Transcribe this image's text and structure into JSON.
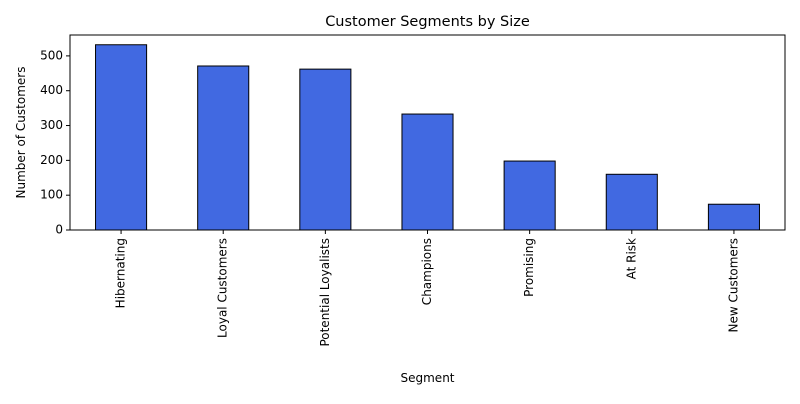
{
  "chart_data": {
    "type": "bar",
    "title": "Customer Segments by Size",
    "xlabel": "Segment",
    "ylabel": "Number of Customers",
    "categories": [
      "Hibernating",
      "Loyal Customers",
      "Potential Loyalists",
      "Champions",
      "Promising",
      "At Risk",
      "New Customers"
    ],
    "values": [
      532,
      471,
      462,
      333,
      198,
      160,
      74
    ],
    "ylim": [
      0,
      560
    ],
    "yticks": [
      0,
      100,
      200,
      300,
      400,
      500
    ],
    "bar_color": "#4169E1",
    "bar_edge_color": "#000000",
    "grid": false,
    "legend": "none"
  }
}
